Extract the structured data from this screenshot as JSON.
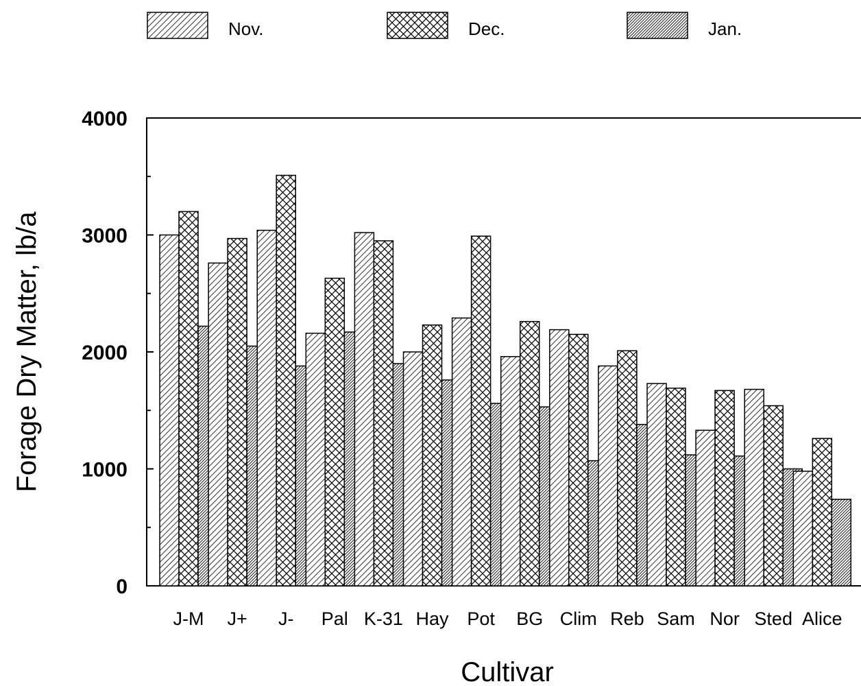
{
  "chart_data": {
    "type": "bar",
    "xlabel": "Cultivar",
    "ylabel": "Forage Dry Matter, lb/a",
    "ylim": [
      0,
      4000
    ],
    "yticks": [
      0,
      1000,
      2000,
      3000,
      4000
    ],
    "grid": false,
    "legend_position": "top",
    "categories": [
      "J-M",
      "J+",
      "J-",
      "Pal",
      "K-31",
      "Hay",
      "Pot",
      "BG",
      "Clim",
      "Reb",
      "Sam",
      "Nor",
      "Sted",
      "Alice"
    ],
    "series": [
      {
        "name": "Nov.",
        "pattern": "diagonal-hatch",
        "values": [
          3000,
          2760,
          3040,
          2160,
          3020,
          2000,
          2290,
          1960,
          2190,
          1880,
          1730,
          1330,
          1680,
          980
        ]
      },
      {
        "name": "Dec.",
        "pattern": "crosshatch",
        "values": [
          3200,
          2970,
          3510,
          2630,
          2950,
          2230,
          2990,
          2260,
          2150,
          2010,
          1690,
          1670,
          1540,
          1260
        ]
      },
      {
        "name": "Jan.",
        "pattern": "dense-hatch",
        "values": [
          2220,
          2050,
          1880,
          2170,
          1900,
          1760,
          1560,
          1530,
          1070,
          1380,
          1120,
          1110,
          1000,
          740
        ]
      }
    ]
  }
}
